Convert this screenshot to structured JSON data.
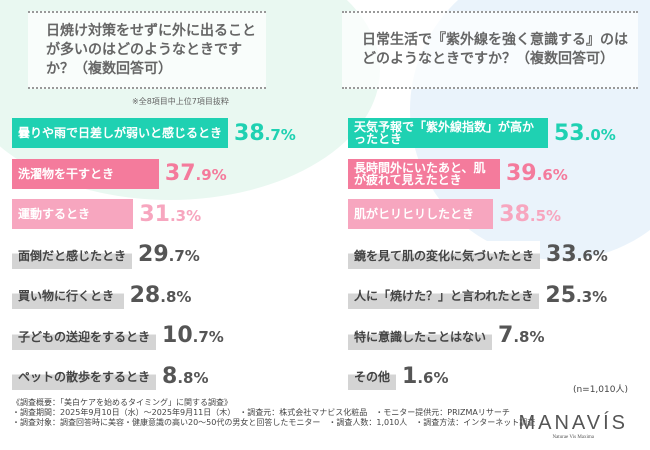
{
  "chart_data": [
    {
      "type": "bar",
      "orientation": "horizontal",
      "title": "日焼け対策をせずに外に出ることが多いのはどのようなときですか？（複数回答可）",
      "note": "※全8項目中上位7項目抜粋",
      "categories": [
        "曇りや雨で日差しが弱いと感じるとき",
        "洗濯物を干すとき",
        "運動するとき",
        "面倒だと感じたとき",
        "買い物に行くとき",
        "子どもの送迎をするとき",
        "ペットの散歩をするとき"
      ],
      "values": [
        38.7,
        37.9,
        31.3,
        29.7,
        28.8,
        10.7,
        8.8
      ],
      "labels": [
        "38.7",
        "37.9",
        "31.3",
        "29.7",
        "28.8",
        "10.7",
        "8.8"
      ]
    },
    {
      "type": "bar",
      "orientation": "horizontal",
      "title": "日常生活で『紫外線を強く意識する』のはどのようなときですか？（複数回答可）",
      "note": "(n=1,010人)",
      "categories": [
        "天気予報で「紫外線指数」が高かったとき",
        "長時間外にいたあと、肌が疲れて見えたとき",
        "肌がヒリヒリしたとき",
        "鏡を見て肌の変化に気づいたとき",
        "人に「焼けた？」と言われたとき",
        "特に意識したことはない",
        "その他"
      ],
      "values": [
        53.0,
        39.6,
        38.5,
        33.6,
        25.3,
        7.8,
        1.6
      ],
      "labels": [
        "53.0",
        "39.6",
        "38.5",
        "33.6",
        "25.3",
        "7.8",
        "1.6"
      ]
    }
  ],
  "colors": {
    "rank1": "#1fd1b2",
    "rank2": "#f47b9c",
    "rank3": "#f7a6bf",
    "other": "#d4d4d4",
    "value_other": "#555555"
  },
  "footer": {
    "title": "《調査概要：「美白ケアを始めるタイミング」に関する調査》",
    "line1": "・調査期間：2025年9月10日（水）～2025年9月11日（木）　・調査元：株式会社マナビス化粧品　・モニター提供元：PRIZMAリサーチ",
    "line2": "・調査対象：調査回答時に美容・健康意識の高い20～50代の男女と回答したモニター　・調査人数：1,010人　・調査方法：インターネット調査"
  },
  "logo": {
    "name": "MANAVÍS",
    "tagline": "Naturae Vis Maxima"
  }
}
